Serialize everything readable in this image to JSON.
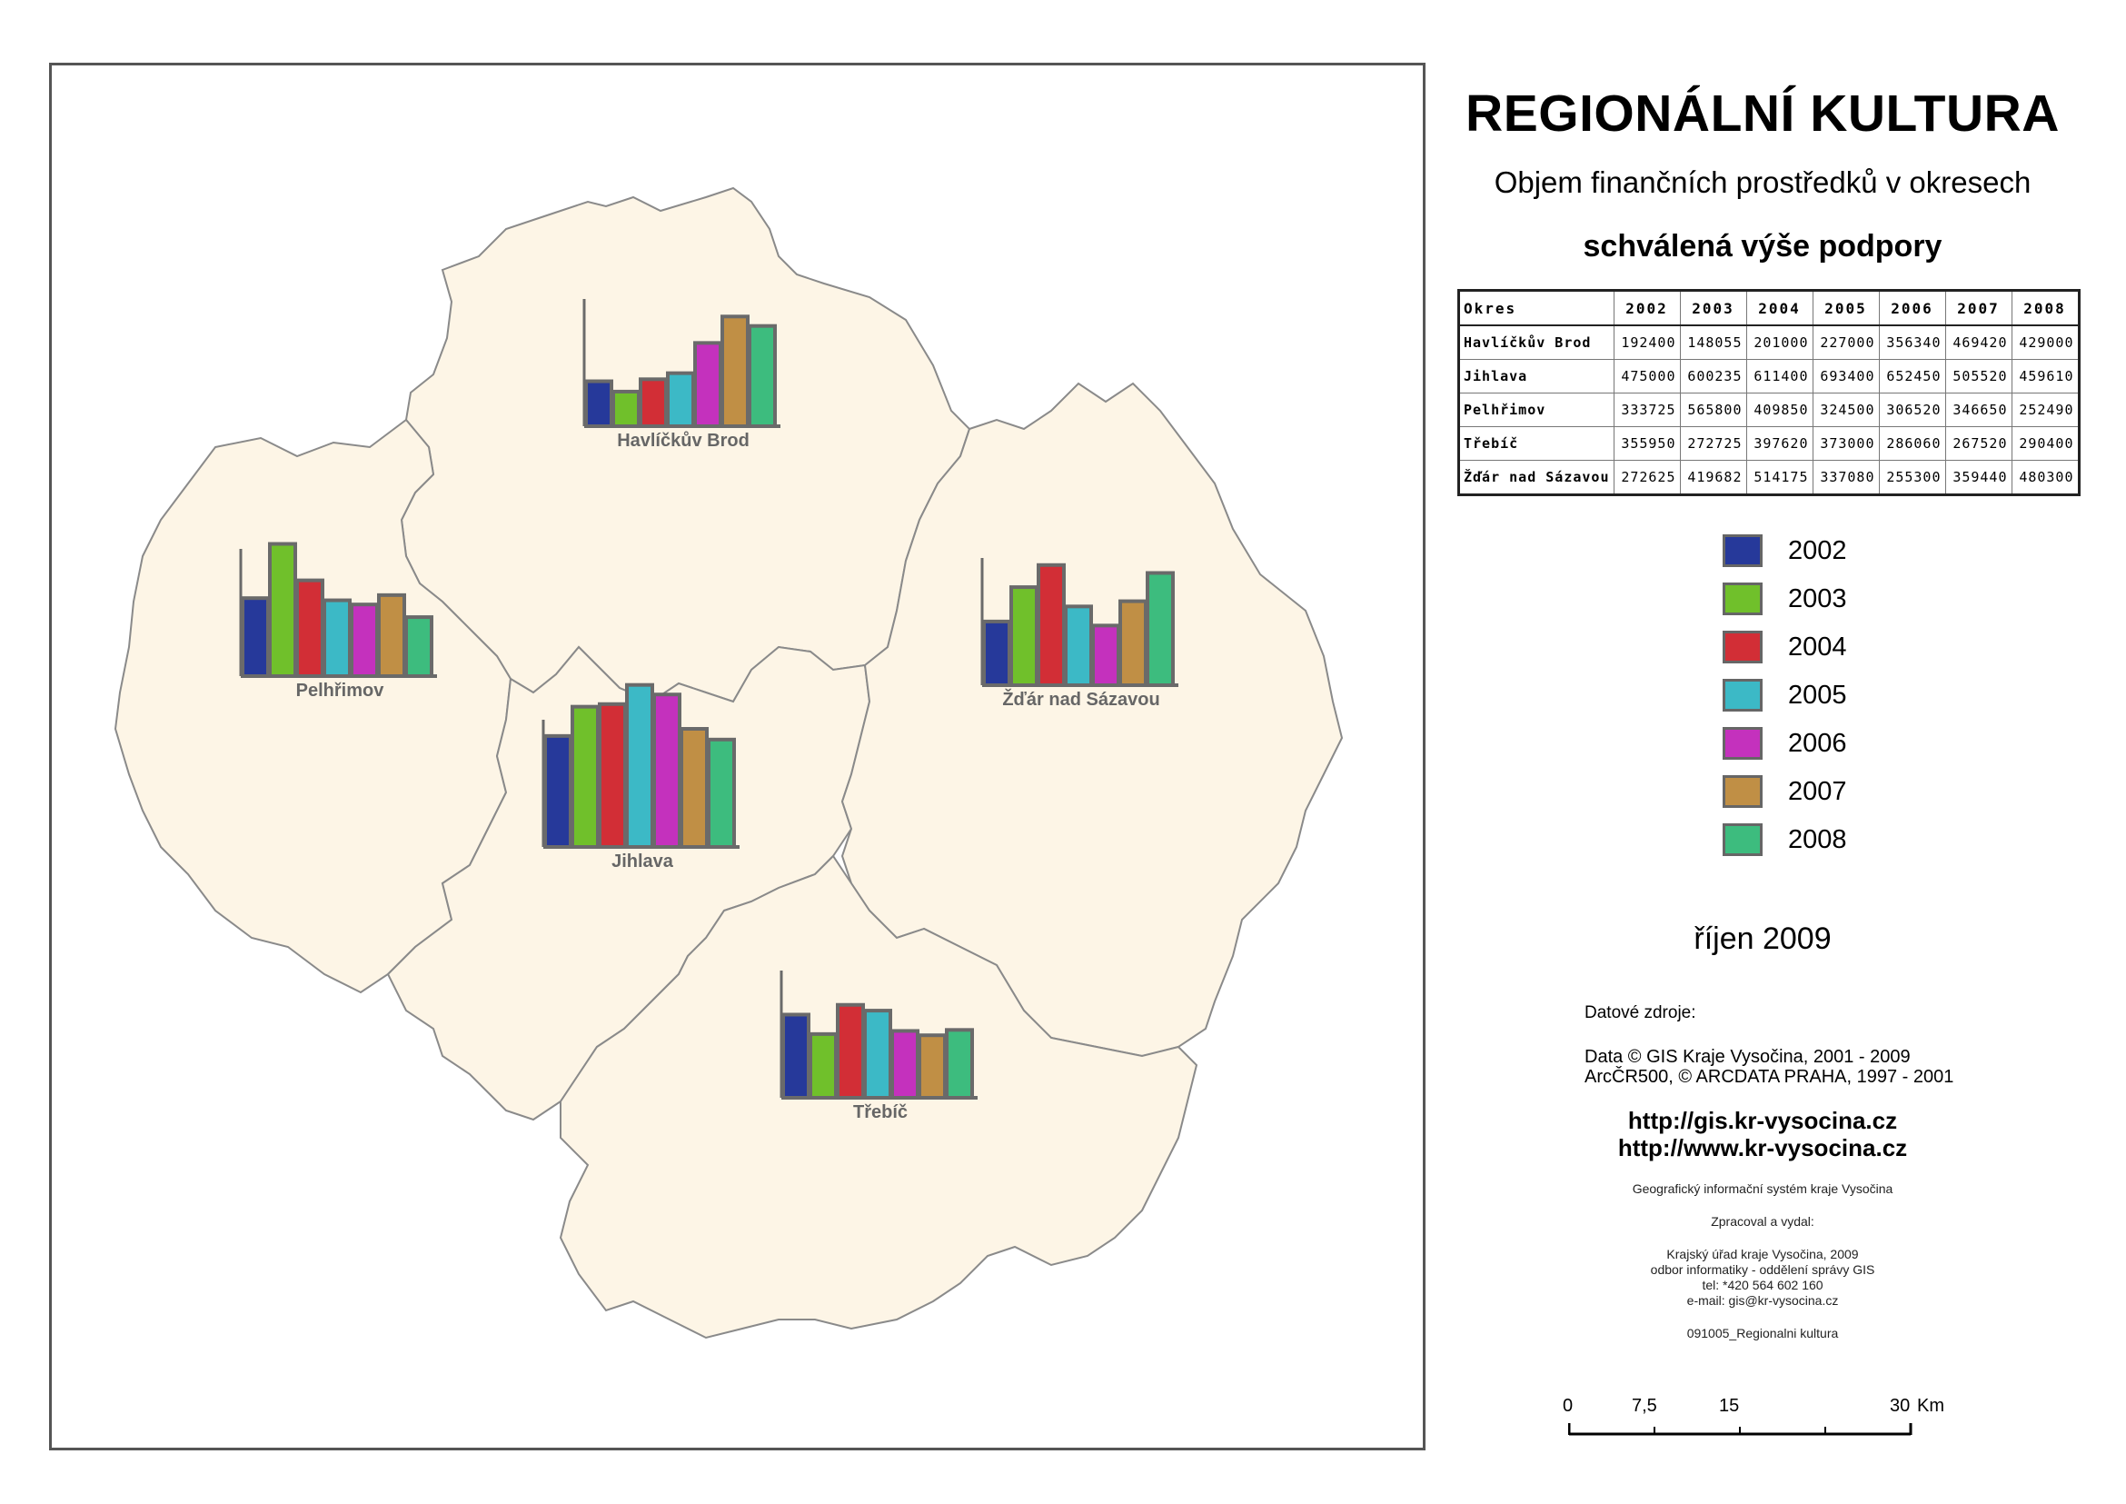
{
  "title": "REGIONÁLNÍ KULTURA",
  "subtitle": "Objem finančních prostředků v okresech",
  "heading": "schválená výše podpory",
  "table": {
    "header_first": "Okres",
    "years": [
      "2002",
      "2003",
      "2004",
      "2005",
      "2006",
      "2007",
      "2008"
    ],
    "rows": [
      {
        "name": "Havlíčkův Brod",
        "values": [
          "192400",
          "148055",
          "201000",
          "227000",
          "356340",
          "469420",
          "429000"
        ]
      },
      {
        "name": "Jihlava",
        "values": [
          "475000",
          "600235",
          "611400",
          "693400",
          "652450",
          "505520",
          "459610"
        ]
      },
      {
        "name": "Pelhřimov",
        "values": [
          "333725",
          "565800",
          "409850",
          "324500",
          "306520",
          "346650",
          "252490"
        ]
      },
      {
        "name": "Třebíč",
        "values": [
          "355950",
          "272725",
          "397620",
          "373000",
          "286060",
          "267520",
          "290400"
        ]
      },
      {
        "name": "Žďár nad Sázavou",
        "values": [
          "272625",
          "419682",
          "514175",
          "337080",
          "255300",
          "359440",
          "480300"
        ]
      }
    ]
  },
  "legend": [
    {
      "label": "2002",
      "color": "#26399a"
    },
    {
      "label": "2003",
      "color": "#70c02b"
    },
    {
      "label": "2004",
      "color": "#d22e36"
    },
    {
      "label": "2005",
      "color": "#3cb9c6"
    },
    {
      "label": "2006",
      "color": "#c431bd"
    },
    {
      "label": "2007",
      "color": "#c08f45"
    },
    {
      "label": "2008",
      "color": "#3dbc7e"
    }
  ],
  "colors": {
    "region_fill": "#fdf5e6",
    "region_border": "#8a8a8a",
    "bar_outline": "#6a6a6a",
    "frame": "#555555"
  },
  "map_labels": {
    "havlickuv_brod": "Havlíčkův Brod",
    "pelhrimov": "Pelhřimov",
    "jihlava": "Jihlava",
    "zdar": "Žďár nad Sázavou",
    "trebic": "Třebíč"
  },
  "date": "říjen 2009",
  "sources": {
    "title": "Datové zdroje:",
    "line1": "Data © GIS Kraje Vysočina, 2001 - 2009",
    "line2": "ArcČR500, © ARCDATA PRAHA, 1997 - 2001"
  },
  "urls": {
    "url1": "http://gis.kr-vysocina.cz",
    "url2": "http://www.kr-vysocina.cz"
  },
  "credits": {
    "system": "Geografický informační systém kraje Vysočina",
    "processed_by": "Zpracoval a vydal:",
    "office": "Krajský úřad kraje Vysočina, 2009",
    "department": "odbor informatiky - oddělení správy GIS",
    "phone": "tel: *420 564 602 160",
    "email": "e-mail: gis@kr-vysocina.cz",
    "file": "091005_Regionalni kultura"
  },
  "scalebar": {
    "l0": "0",
    "l1": "7,5",
    "l2": "15",
    "l3": "30",
    "unit": "Km"
  }
}
